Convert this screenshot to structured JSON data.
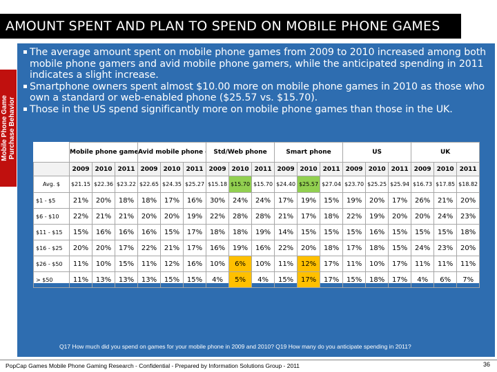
{
  "slide": {
    "title": "AMOUNT SPENT AND PLAN TO SPEND ON MOBILE PHONE GAMES",
    "side_tab_line1": "Mobile Phone Game",
    "side_tab_line2": "Purchase Behavior",
    "bullets": [
      "The average amount spent on mobile phone games from 2009 to 2010 increased among both mobile phone gamers and avid mobile phone gamers, while the anticipated spending in 2011 indicates a slight increase.",
      "Smartphone owners spent almost $10.00 more on mobile phone games in 2010 as those who own a standard or web-enabled phone ($25.57 vs. $15.70).",
      "Those in the US spend significantly more on mobile phone games than those in the UK."
    ],
    "footnote": "Q17  How much did you spend on games for your mobile phone in 2009 and 2010?  Q19  How many do you anticipate spending in 2011?",
    "footer": "PopCap Games Mobile Phone Gaming Research - Confidential - Prepared by Information Solutions Group - 2011",
    "page_number": "36",
    "colors": {
      "title_bg": "#000000",
      "panel_bg": "#2e6db0",
      "side_tab_bg": "#c0100e",
      "highlight_green": "#92d050",
      "highlight_orange": "#ffc000"
    }
  },
  "table": {
    "groups": [
      "Mobile phone gamers",
      "Avid mobile phone gamers",
      "Std/Web phone",
      "Smart phone",
      "US",
      "UK"
    ],
    "years": [
      "2009",
      "2010",
      "2011"
    ],
    "rows": [
      {
        "label": "Avg. $",
        "cells": [
          "$21.15",
          "$22.36",
          "$23.22",
          "$22.65",
          "$24.35",
          "$25.27",
          "$15.18",
          "$15.70",
          "$15.70",
          "$24.40",
          "$25.57",
          "$27.04",
          "$23.70",
          "$25.25",
          "$25.94",
          "$16.73",
          "$17.85",
          "$18.82"
        ]
      },
      {
        "label": "$1 - $5",
        "cells": [
          "21%",
          "20%",
          "18%",
          "18%",
          "17%",
          "16%",
          "30%",
          "24%",
          "24%",
          "17%",
          "19%",
          "15%",
          "19%",
          "20%",
          "17%",
          "26%",
          "21%",
          "20%"
        ]
      },
      {
        "label": "$6 - $10",
        "cells": [
          "22%",
          "21%",
          "21%",
          "20%",
          "20%",
          "19%",
          "22%",
          "28%",
          "28%",
          "21%",
          "17%",
          "18%",
          "22%",
          "19%",
          "20%",
          "20%",
          "24%",
          "23%"
        ]
      },
      {
        "label": "$11 - $15",
        "cells": [
          "15%",
          "16%",
          "16%",
          "16%",
          "15%",
          "17%",
          "18%",
          "18%",
          "19%",
          "14%",
          "15%",
          "15%",
          "15%",
          "16%",
          "15%",
          "15%",
          "15%",
          "18%"
        ]
      },
      {
        "label": "$16 - $25",
        "cells": [
          "20%",
          "20%",
          "17%",
          "22%",
          "21%",
          "17%",
          "16%",
          "19%",
          "16%",
          "22%",
          "20%",
          "18%",
          "17%",
          "18%",
          "15%",
          "24%",
          "23%",
          "20%"
        ]
      },
      {
        "label": "$26 - $50",
        "cells": [
          "11%",
          "10%",
          "15%",
          "11%",
          "12%",
          "16%",
          "10%",
          "6%",
          "10%",
          "11%",
          "12%",
          "17%",
          "11%",
          "10%",
          "17%",
          "11%",
          "11%",
          "11%"
        ]
      },
      {
        "label": "> $50",
        "cells": [
          "11%",
          "13%",
          "13%",
          "13%",
          "15%",
          "15%",
          "4%",
          "5%",
          "4%",
          "15%",
          "17%",
          "17%",
          "15%",
          "18%",
          "17%",
          "4%",
          "6%",
          "7%"
        ]
      }
    ],
    "highlights": [
      {
        "row": 0,
        "col": 7,
        "color": "green"
      },
      {
        "row": 0,
        "col": 10,
        "color": "green"
      },
      {
        "row": 5,
        "col": 7,
        "color": "orange"
      },
      {
        "row": 5,
        "col": 10,
        "color": "orange"
      },
      {
        "row": 6,
        "col": 7,
        "color": "orange"
      },
      {
        "row": 6,
        "col": 10,
        "color": "orange"
      }
    ]
  }
}
